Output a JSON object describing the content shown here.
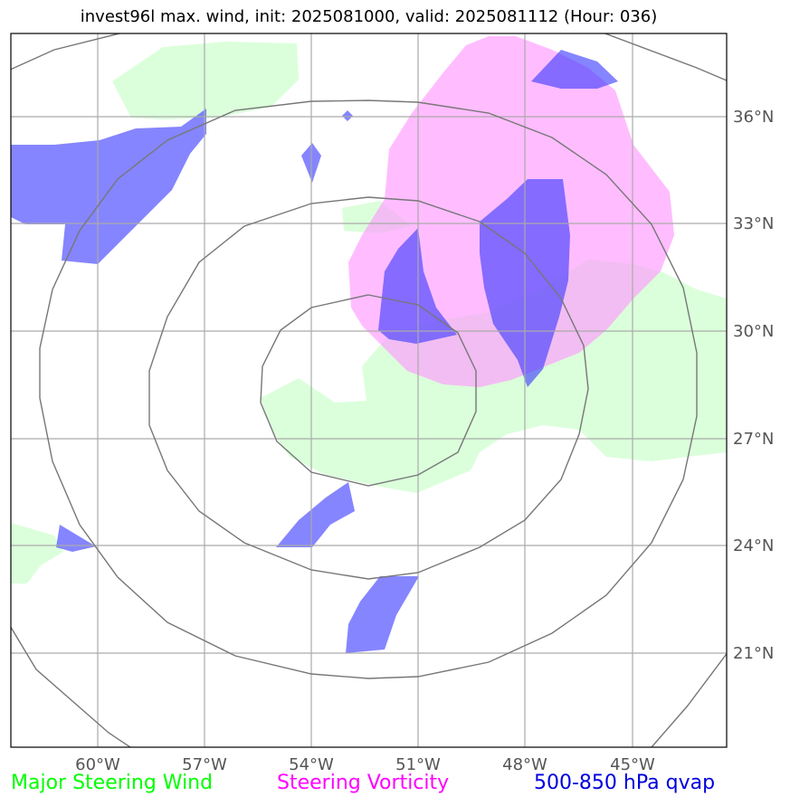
{
  "title": "invest96l max. wind, init: 2025081000, valid: 2025081112 (Hour: 036)",
  "x_ticks": [
    "60°W",
    "57°W",
    "54°W",
    "51°W",
    "48°W",
    "45°W"
  ],
  "y_ticks": [
    "36°N",
    "33°N",
    "30°N",
    "27°N",
    "24°N",
    "21°N"
  ],
  "legend": {
    "wind": {
      "label": "Major Steering Wind",
      "color": "#00ff00"
    },
    "vorticity": {
      "label": "Steering Vorticity",
      "color": "#ff00ff"
    },
    "qvap": {
      "label": "500-850 hPa qvap",
      "color": "#0000dd"
    }
  },
  "colors": {
    "wind_fill": "#ccffcc",
    "vorticity_fill": "#ff99ff",
    "qvap_fill": "#3333ff",
    "range_rings": "#777777",
    "gridlines": "#aaaaaa"
  }
}
